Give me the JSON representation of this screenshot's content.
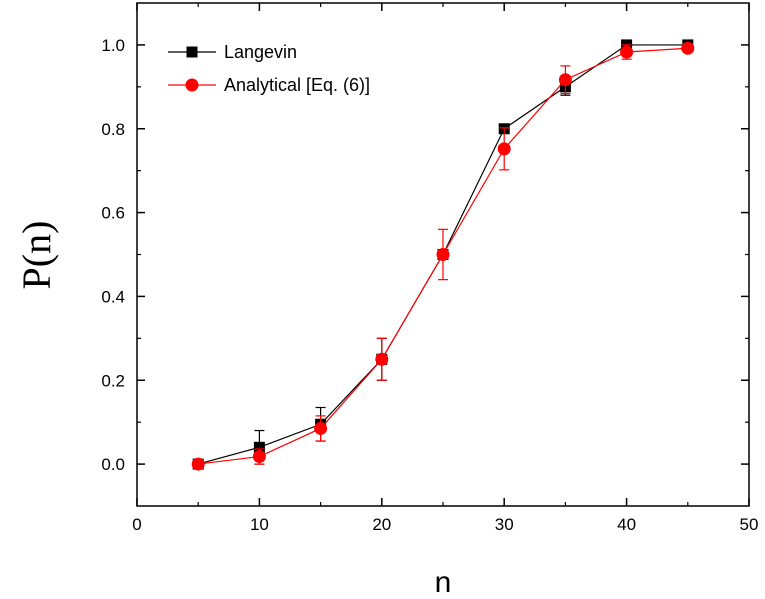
{
  "chart_data": {
    "type": "line",
    "title": "",
    "xlabel": "n",
    "ylabel": "P(n)",
    "xlim": [
      0,
      50
    ],
    "ylim": [
      -0.1,
      1.1
    ],
    "x_ticks": [
      0,
      10,
      20,
      30,
      40,
      50
    ],
    "y_ticks": [
      0.0,
      0.2,
      0.4,
      0.6,
      0.8,
      1.0
    ],
    "x_tick_labels": [
      "0",
      "10",
      "20",
      "30",
      "40",
      "50"
    ],
    "y_tick_labels": [
      "0.0",
      "0.2",
      "0.4",
      "0.6",
      "0.8",
      "1.0"
    ],
    "grid": false,
    "legend_position": "top-left",
    "series": [
      {
        "name": "Langevin",
        "color": "#000000",
        "marker": "square",
        "x": [
          5,
          10,
          15,
          20,
          25,
          30,
          35,
          40,
          45
        ],
        "y": [
          0.0,
          0.04,
          0.095,
          0.25,
          0.5,
          0.8,
          0.9,
          1.0,
          1.0
        ],
        "yerr": [
          0.0,
          0.04,
          0.04,
          0.05,
          0.0,
          0.0,
          0.02,
          0.0,
          0.0
        ]
      },
      {
        "name": "Analytical [Eq. (6)]",
        "color": "#ff0000",
        "marker": "circle",
        "x": [
          5,
          10,
          15,
          20,
          25,
          30,
          35,
          40,
          45
        ],
        "y": [
          0.0,
          0.018,
          0.085,
          0.25,
          0.5,
          0.752,
          0.917,
          0.983,
          0.992
        ],
        "yerr": [
          0.0,
          0.018,
          0.03,
          0.05,
          0.06,
          0.05,
          0.033,
          0.017,
          0.008
        ]
      }
    ]
  }
}
